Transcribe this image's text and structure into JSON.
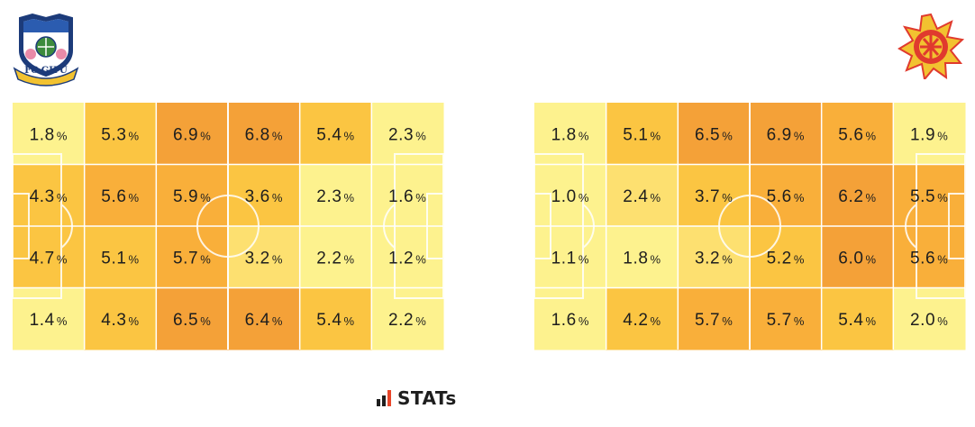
{
  "teams": [
    {
      "crest_icon": "fc-gifu-crest-icon",
      "crest_text": "FC GIFU"
    },
    {
      "crest_icon": "kamatamare-sanuki-crest-icon",
      "crest_text": ""
    }
  ],
  "branding": {
    "label": "STATs",
    "bar_colors": [
      "#1e1e1e",
      "#1e1e1e",
      "#e8462a"
    ]
  },
  "colors": {
    "low": "#fdf28e",
    "mid_low": "#fde070",
    "mid": "#fbc542",
    "mid_high": "#f9af3a",
    "high": "#f4a138",
    "pitch_lines": "#ffffff"
  },
  "chart_data": [
    {
      "type": "heatmap",
      "title": "",
      "unit": "%",
      "rows": 4,
      "cols": 6,
      "values": [
        [
          1.8,
          5.3,
          6.9,
          6.8,
          5.4,
          2.3
        ],
        [
          4.3,
          5.6,
          5.9,
          3.6,
          2.3,
          1.6
        ],
        [
          4.7,
          5.1,
          5.7,
          3.2,
          2.2,
          1.2
        ],
        [
          1.4,
          4.3,
          6.5,
          6.4,
          5.4,
          2.2
        ]
      ],
      "labels": [
        [
          "1.8",
          "5.3",
          "6.9",
          "6.8",
          "5.4",
          "2.3"
        ],
        [
          "4.3",
          "5.6",
          "5.9",
          "3.6",
          "2.3",
          "1.6"
        ],
        [
          "4.7",
          "5.1",
          "5.7",
          "3.2",
          "2.2",
          "1.2"
        ],
        [
          "1.4",
          "4.3",
          "6.5",
          "6.4",
          "5.4",
          "2.2"
        ]
      ]
    },
    {
      "type": "heatmap",
      "title": "",
      "unit": "%",
      "rows": 4,
      "cols": 6,
      "values": [
        [
          1.8,
          5.1,
          6.5,
          6.9,
          5.6,
          1.9
        ],
        [
          1.0,
          2.4,
          3.7,
          5.6,
          6.2,
          5.5
        ],
        [
          1.1,
          1.8,
          3.2,
          5.2,
          6.0,
          5.6
        ],
        [
          1.6,
          4.2,
          5.7,
          5.7,
          5.4,
          2.0
        ]
      ],
      "labels": [
        [
          "1.8",
          "5.1",
          "6.5",
          "6.9",
          "5.6",
          "1.9"
        ],
        [
          "1.0",
          "2.4",
          "3.7",
          "5.6",
          "6.2",
          "5.5"
        ],
        [
          "1.1",
          "1.8",
          "3.2",
          "5.2",
          "6.0",
          "5.6"
        ],
        [
          "1.6",
          "4.2",
          "5.7",
          "5.7",
          "5.4",
          "2.0"
        ]
      ]
    }
  ]
}
